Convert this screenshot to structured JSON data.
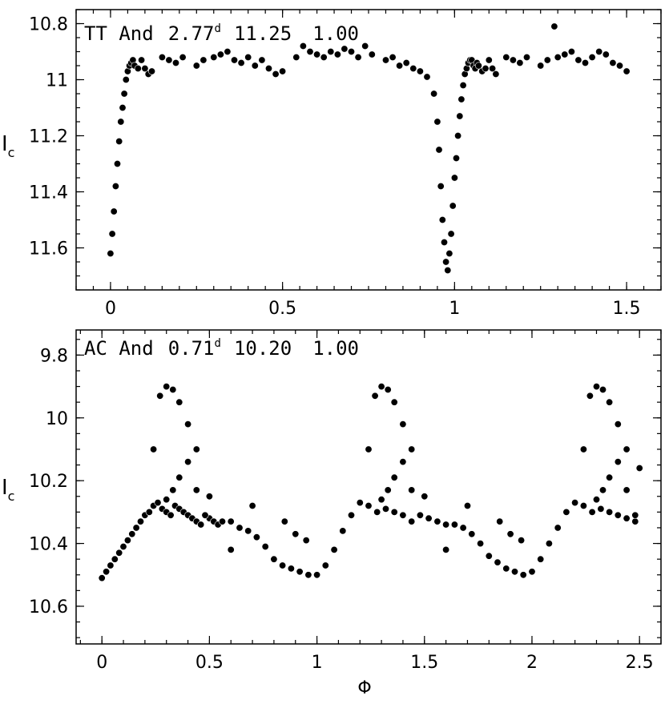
{
  "chart_data": [
    {
      "type": "scatter",
      "title": "TT And",
      "period": "2.77",
      "period_unit": "d",
      "mag": "11.25",
      "amp": "1.00",
      "ylabel_main": "I",
      "ylabel_sub": "c",
      "xlabel": "",
      "xlim": [
        -0.1,
        1.6
      ],
      "ylim": [
        10.75,
        11.75
      ],
      "y_reversed": true,
      "x_ticks": [
        0,
        0.5,
        1,
        1.5
      ],
      "x_tick_labels": [
        "0",
        "0.5",
        "1",
        "1.5"
      ],
      "y_ticks": [
        10.8,
        11,
        11.2,
        11.4,
        11.6
      ],
      "y_tick_labels": [
        "10.8",
        "11",
        "11.2",
        "11.4",
        "11.6"
      ],
      "series": [
        {
          "x": [
            0.0,
            0.005,
            0.01,
            0.015,
            0.02,
            0.025,
            0.03,
            0.035,
            0.04,
            0.045,
            0.05,
            0.055,
            0.06,
            0.065,
            0.07,
            0.08,
            0.09,
            0.1,
            0.11,
            0.12,
            0.15,
            0.17,
            0.19,
            0.21,
            0.25,
            0.27,
            0.3,
            0.32,
            0.34,
            0.36,
            0.38,
            0.4,
            0.42,
            0.44,
            0.46,
            0.48,
            0.5,
            0.54,
            0.56,
            0.58,
            0.6,
            0.62,
            0.64,
            0.66,
            0.68,
            0.7,
            0.72,
            0.74,
            0.76,
            0.8,
            0.82,
            0.84,
            0.86,
            0.88,
            0.9,
            0.92,
            0.94,
            0.95,
            0.955,
            0.96,
            0.965,
            0.97,
            0.975,
            0.98,
            0.985,
            0.99,
            0.995,
            1.0,
            1.005,
            1.01,
            1.015,
            1.02,
            1.025,
            1.03,
            1.035,
            1.04,
            1.045,
            1.05,
            1.055,
            1.06,
            1.065,
            1.07,
            1.08,
            1.09,
            1.1,
            1.11,
            1.12,
            1.15,
            1.17,
            1.19,
            1.21,
            1.25,
            1.27,
            1.29,
            1.3,
            1.32,
            1.34,
            1.36,
            1.38,
            1.4,
            1.42,
            1.44,
            1.46,
            1.48,
            1.5
          ],
          "y": [
            11.62,
            11.55,
            11.47,
            11.38,
            11.3,
            11.22,
            11.15,
            11.1,
            11.05,
            11.0,
            10.97,
            10.95,
            10.94,
            10.93,
            10.95,
            10.96,
            10.93,
            10.96,
            10.98,
            10.97,
            10.92,
            10.93,
            10.94,
            10.92,
            10.95,
            10.93,
            10.92,
            10.91,
            10.9,
            10.93,
            10.94,
            10.92,
            10.95,
            10.93,
            10.96,
            10.98,
            10.97,
            10.92,
            10.88,
            10.9,
            10.91,
            10.92,
            10.9,
            10.91,
            10.89,
            10.9,
            10.92,
            10.88,
            10.91,
            10.93,
            10.92,
            10.95,
            10.94,
            10.96,
            10.97,
            10.99,
            11.05,
            11.15,
            11.25,
            11.38,
            11.5,
            11.58,
            11.65,
            11.68,
            11.62,
            11.55,
            11.45,
            11.35,
            11.28,
            11.2,
            11.13,
            11.07,
            11.02,
            10.98,
            10.96,
            10.94,
            10.93,
            10.93,
            10.95,
            10.96,
            10.94,
            10.95,
            10.97,
            10.96,
            10.93,
            10.96,
            10.98,
            10.92,
            10.93,
            10.94,
            10.92,
            10.95,
            10.93,
            10.81,
            10.92,
            10.91,
            10.9,
            10.93,
            10.94,
            10.92,
            10.9,
            10.91,
            10.94,
            10.95,
            10.97
          ]
        }
      ]
    },
    {
      "type": "scatter",
      "title": "AC And",
      "period": "0.71",
      "period_unit": "d",
      "mag": "10.20",
      "amp": "1.00",
      "ylabel_main": "I",
      "ylabel_sub": "c",
      "xlabel": "Φ",
      "xlim": [
        -0.12,
        2.6
      ],
      "ylim": [
        9.72,
        10.72
      ],
      "y_reversed": true,
      "x_ticks": [
        0,
        0.5,
        1,
        1.5,
        2,
        2.5
      ],
      "x_tick_labels": [
        "0",
        "0.5",
        "1",
        "1.5",
        "2",
        "2.5"
      ],
      "y_ticks": [
        9.8,
        10,
        10.2,
        10.4,
        10.6
      ],
      "y_tick_labels": [
        "9.8",
        "10",
        "10.2",
        "10.4",
        "10.6"
      ],
      "series": [
        {
          "x": [
            0.0,
            0.02,
            0.04,
            0.06,
            0.08,
            0.1,
            0.12,
            0.14,
            0.16,
            0.18,
            0.2,
            0.22,
            0.24,
            0.26,
            0.28,
            0.3,
            0.32,
            0.34,
            0.36,
            0.38,
            0.4,
            0.42,
            0.44,
            0.46,
            0.48,
            0.5,
            0.52,
            0.54,
            0.56,
            0.6,
            0.64,
            0.68,
            0.72,
            0.76,
            0.8,
            0.84,
            0.88,
            0.92,
            0.96,
            1.0,
            1.04,
            1.08,
            1.12,
            1.16,
            1.2,
            1.24,
            1.28,
            1.32,
            1.36,
            1.4,
            1.44,
            1.48,
            1.52,
            1.56,
            1.6,
            1.64,
            1.68,
            1.72,
            1.76,
            1.8,
            1.84,
            1.88,
            1.92,
            1.96,
            2.0,
            2.04,
            2.08,
            2.12,
            2.16,
            2.2,
            2.24,
            2.28,
            2.32,
            2.36,
            2.4,
            2.44,
            2.48,
            0.27,
            0.3,
            0.33,
            0.36,
            0.4,
            0.44,
            0.5,
            1.27,
            1.3,
            1.33,
            1.36,
            1.4,
            1.44,
            1.5,
            2.27,
            2.3,
            2.33,
            2.36,
            2.4,
            2.44,
            2.5,
            0.3,
            0.33,
            0.36,
            0.4,
            0.44,
            0.48,
            1.3,
            1.33,
            1.36,
            1.4,
            1.44,
            1.48,
            2.3,
            2.33,
            2.36,
            2.4,
            2.44,
            2.48,
            0.24,
            1.24,
            2.24,
            0.6,
            1.6,
            0.7,
            1.7,
            0.85,
            0.9,
            0.95,
            1.85,
            1.9,
            1.95
          ],
          "y": [
            10.51,
            10.49,
            10.47,
            10.45,
            10.43,
            10.41,
            10.39,
            10.37,
            10.35,
            10.33,
            10.31,
            10.3,
            10.28,
            10.27,
            10.29,
            10.3,
            10.31,
            10.28,
            10.29,
            10.3,
            10.31,
            10.32,
            10.33,
            10.34,
            10.31,
            10.32,
            10.33,
            10.34,
            10.33,
            10.33,
            10.35,
            10.36,
            10.38,
            10.41,
            10.45,
            10.47,
            10.48,
            10.49,
            10.5,
            10.5,
            10.47,
            10.42,
            10.36,
            10.31,
            10.27,
            10.28,
            10.3,
            10.29,
            10.3,
            10.31,
            10.33,
            10.31,
            10.32,
            10.33,
            10.34,
            10.34,
            10.35,
            10.37,
            10.4,
            10.44,
            10.46,
            10.48,
            10.49,
            10.5,
            10.49,
            10.45,
            10.4,
            10.35,
            10.3,
            10.27,
            10.28,
            10.3,
            10.29,
            10.3,
            10.31,
            10.32,
            10.33,
            9.93,
            9.9,
            9.91,
            9.95,
            10.02,
            10.1,
            10.25,
            9.93,
            9.9,
            9.91,
            9.95,
            10.02,
            10.1,
            10.25,
            9.93,
            9.9,
            9.91,
            9.95,
            10.02,
            10.1,
            10.16,
            10.26,
            10.23,
            10.19,
            10.14,
            10.23,
            10.31,
            10.26,
            10.23,
            10.19,
            10.14,
            10.23,
            10.31,
            10.26,
            10.23,
            10.19,
            10.14,
            10.23,
            10.31,
            10.1,
            10.1,
            10.1,
            10.42,
            10.42,
            10.28,
            10.28,
            10.33,
            10.37,
            10.39,
            10.33,
            10.37,
            10.39
          ]
        }
      ]
    }
  ]
}
